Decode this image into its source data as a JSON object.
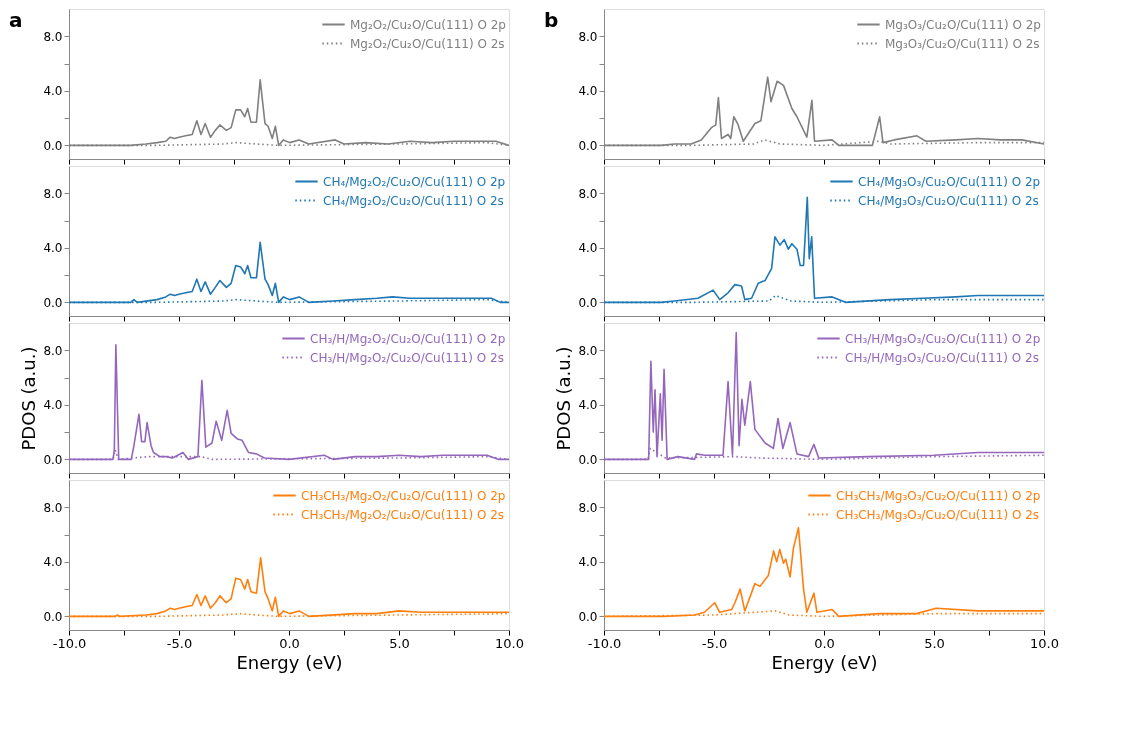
{
  "chart_data": [
    {
      "type": "line",
      "annotations": [
        "a"
      ],
      "legend": "top right",
      "tick_labels": "y",
      "xlim": [
        -10,
        10
      ],
      "ylim": [
        -1,
        10
      ],
      "xticks": [
        {
          "value": -10,
          "label": null
        },
        {
          "value": -7.5,
          "label": null
        },
        {
          "value": -5,
          "label": null
        },
        {
          "value": -2.5,
          "label": null
        },
        {
          "value": 0,
          "label": null
        },
        {
          "value": 2.5,
          "label": null
        },
        {
          "value": 5,
          "label": null
        },
        {
          "value": 7.5,
          "label": null
        },
        {
          "value": 10,
          "label": null
        }
      ],
      "yticks": [
        {
          "value": 0,
          "label": "0.0"
        },
        {
          "value": 2,
          "label": null
        },
        {
          "value": 4,
          "label": "4.0"
        },
        {
          "value": 6,
          "label": null
        },
        {
          "value": 8,
          "label": "8.0"
        }
      ],
      "series": [
        {
          "name": "Mg₂O₂/Cu₂O/Cu(111) O 2p",
          "color": "#808080",
          "line_style": "solid",
          "x": [
            -10,
            -7.2,
            -6.5,
            -6,
            -5.6,
            -5.4,
            -5.2,
            -5,
            -4.7,
            -4.4,
            -4.19,
            -4.0,
            -3.81,
            -3.57,
            -3.35,
            -3.14,
            -2.85,
            -2.63,
            -2.42,
            -2.2,
            -2.01,
            -1.88,
            -1.73,
            -1.48,
            -1.31,
            -1.09,
            -0.95,
            -0.76,
            -0.62,
            -0.47,
            -0.26,
            0.03,
            0.46,
            0.9,
            2.1,
            2.5,
            3.5,
            4.5,
            5.5,
            6.5,
            7.5,
            8.5,
            9.4,
            10
          ],
          "values": [
            0,
            0,
            0.1,
            0.2,
            0.3,
            0.6,
            0.5,
            0.6,
            0.7,
            0.8,
            1.8,
            0.8,
            1.6,
            0.6,
            1.1,
            1.5,
            1.1,
            1.3,
            2.6,
            2.6,
            2.1,
            2.7,
            1.7,
            1.7,
            4.8,
            1.6,
            1.4,
            0.5,
            1.4,
            0,
            0.4,
            0.2,
            0.4,
            0.1,
            0.4,
            0.1,
            0.2,
            0.1,
            0.3,
            0.2,
            0.3,
            0.3,
            0.3,
            0
          ]
        },
        {
          "name": "Mg₂O₂/Cu₂O/Cu(111) O 2s",
          "color": "#808080",
          "line_style": "dotted",
          "x": [
            -10,
            -6,
            -3,
            -2.4,
            -1.5,
            -0.5,
            5,
            9,
            10
          ],
          "values": [
            0,
            0,
            0.1,
            0.2,
            0.1,
            0,
            0.1,
            0.2,
            0
          ]
        }
      ]
    },
    {
      "type": "line",
      "annotations": [
        "b"
      ],
      "legend": "top right",
      "tick_labels": "y",
      "xlim": [
        -10,
        10
      ],
      "ylim": [
        -1,
        10
      ],
      "xticks": [
        {
          "value": -10,
          "label": null
        },
        {
          "value": -7.5,
          "label": null
        },
        {
          "value": -5,
          "label": null
        },
        {
          "value": -2.5,
          "label": null
        },
        {
          "value": 0,
          "label": null
        },
        {
          "value": 2.5,
          "label": null
        },
        {
          "value": 5,
          "label": null
        },
        {
          "value": 7.5,
          "label": null
        },
        {
          "value": 10,
          "label": null
        }
      ],
      "yticks": [
        {
          "value": 0,
          "label": "0.0"
        },
        {
          "value": 2,
          "label": null
        },
        {
          "value": 4,
          "label": "4.0"
        },
        {
          "value": 6,
          "label": null
        },
        {
          "value": 8,
          "label": "8.0"
        }
      ],
      "series": [
        {
          "name": "Mg₃O₃/Cu₂O/Cu(111) O 2p",
          "color": "#808080",
          "line_style": "solid",
          "x": [
            -10,
            -7.41,
            -6.8,
            -6.04,
            -5.58,
            -5.12,
            -4.92,
            -4.8,
            -4.66,
            -4.36,
            -4.24,
            -4.1,
            -3.9,
            -3.67,
            -3.14,
            -2.87,
            -2.56,
            -2.41,
            -2.13,
            -1.84,
            -1.46,
            -1.23,
            -0.78,
            -0.55,
            -0.43,
            0.37,
            0.67,
            2.2,
            2.53,
            2.68,
            3.19,
            4.22,
            4.63,
            6,
            7,
            8,
            9,
            10
          ],
          "values": [
            0,
            0,
            0.1,
            0.1,
            0.4,
            1.3,
            1.5,
            3.5,
            0.5,
            0.8,
            0.5,
            2.1,
            1.5,
            0.3,
            1.6,
            1.8,
            5.0,
            3.2,
            4.7,
            4.4,
            2.7,
            2.1,
            0.6,
            3.3,
            0.3,
            0.4,
            0,
            0,
            2.1,
            0.2,
            0.4,
            0.7,
            0.3,
            0.4,
            0.5,
            0.4,
            0.4,
            0.1
          ]
        },
        {
          "name": "Mg₃O₃/Cu₂O/Cu(111) O 2s",
          "color": "#808080",
          "line_style": "dotted",
          "x": [
            -10,
            -6,
            -3.2,
            -2.7,
            -2,
            0,
            2.5,
            3,
            7,
            10
          ],
          "values": [
            0,
            0,
            0.1,
            0.4,
            0.1,
            0,
            0.3,
            0.1,
            0.2,
            0.2
          ]
        }
      ]
    },
    {
      "type": "line",
      "legend": "top right",
      "tick_labels": "y",
      "xlim": [
        -10,
        10
      ],
      "ylim": [
        -1,
        10
      ],
      "xticks": [
        {
          "value": -10,
          "label": null
        },
        {
          "value": -7.5,
          "label": null
        },
        {
          "value": -5,
          "label": null
        },
        {
          "value": -2.5,
          "label": null
        },
        {
          "value": 0,
          "label": null
        },
        {
          "value": 2.5,
          "label": null
        },
        {
          "value": 5,
          "label": null
        },
        {
          "value": 7.5,
          "label": null
        },
        {
          "value": 10,
          "label": null
        }
      ],
      "yticks": [
        {
          "value": 0,
          "label": "0.0"
        },
        {
          "value": 2,
          "label": null
        },
        {
          "value": 4,
          "label": "4.0"
        },
        {
          "value": 6,
          "label": null
        },
        {
          "value": 8,
          "label": "8.0"
        }
      ],
      "series": [
        {
          "name": "CH₄/Mg₂O₂/Cu₂O/Cu(111) O 2p",
          "color": "#1f77b4",
          "line_style": "solid",
          "x": [
            -10,
            -7.2,
            -7.05,
            -6.9,
            -6,
            -5.6,
            -5.4,
            -5.2,
            -5,
            -4.7,
            -4.4,
            -4.19,
            -4.0,
            -3.81,
            -3.57,
            -3.35,
            -3.14,
            -2.85,
            -2.63,
            -2.42,
            -2.2,
            -2.01,
            -1.88,
            -1.73,
            -1.48,
            -1.31,
            -1.09,
            -0.95,
            -0.76,
            -0.62,
            -0.47,
            -0.26,
            0.03,
            0.46,
            0.9,
            2,
            3,
            4,
            4.7,
            5.5,
            6.5,
            7.5,
            8.5,
            9.2,
            9.6,
            10
          ],
          "values": [
            0,
            0,
            0.2,
            0,
            0.2,
            0.4,
            0.6,
            0.5,
            0.6,
            0.7,
            0.8,
            1.7,
            0.8,
            1.5,
            0.6,
            1.1,
            1.6,
            1.1,
            1.4,
            2.7,
            2.6,
            2.1,
            2.7,
            1.8,
            1.8,
            4.4,
            1.7,
            1.3,
            0.5,
            1.4,
            0,
            0.4,
            0.2,
            0.4,
            0,
            0.1,
            0.2,
            0.3,
            0.4,
            0.3,
            0.3,
            0.3,
            0.3,
            0.3,
            0,
            0
          ]
        },
        {
          "name": "CH₄/Mg₂O₂/Cu₂O/Cu(111) O 2s",
          "color": "#1f77b4",
          "line_style": "dotted",
          "x": [
            -10,
            -6,
            -3,
            -2.4,
            -1.5,
            -0.5,
            5,
            9,
            10
          ],
          "values": [
            0,
            0,
            0.1,
            0.2,
            0.1,
            0,
            0.1,
            0.2,
            0
          ]
        }
      ]
    },
    {
      "type": "line",
      "legend": "top right",
      "tick_labels": "y",
      "xlim": [
        -10,
        10
      ],
      "ylim": [
        -1,
        10
      ],
      "xticks": [
        {
          "value": -10,
          "label": null
        },
        {
          "value": -7.5,
          "label": null
        },
        {
          "value": -5,
          "label": null
        },
        {
          "value": -2.5,
          "label": null
        },
        {
          "value": 0,
          "label": null
        },
        {
          "value": 2.5,
          "label": null
        },
        {
          "value": 5,
          "label": null
        },
        {
          "value": 7.5,
          "label": null
        },
        {
          "value": 10,
          "label": null
        }
      ],
      "yticks": [
        {
          "value": 0,
          "label": "0.0"
        },
        {
          "value": 2,
          "label": null
        },
        {
          "value": 4,
          "label": "4.0"
        },
        {
          "value": 6,
          "label": null
        },
        {
          "value": 8,
          "label": "8.0"
        }
      ],
      "series": [
        {
          "name": "CH₄/Mg₃O₃/Cu₂O/Cu(111) O 2p",
          "color": "#1f77b4",
          "line_style": "solid",
          "x": [
            -10,
            -7.41,
            -6.8,
            -5.73,
            -5.04,
            -4.74,
            -4.36,
            -4.05,
            -3.75,
            -3.6,
            -3.29,
            -2.99,
            -2.68,
            -2.38,
            -2.23,
            -2.0,
            -1.81,
            -1.62,
            -1.46,
            -1.23,
            -1.08,
            -0.93,
            -0.76,
            -0.67,
            -0.56,
            -0.43,
            0.37,
            0.98,
            3,
            4.5,
            6,
            7,
            8.5,
            10
          ],
          "values": [
            0,
            0,
            0.1,
            0.3,
            0.9,
            0.2,
            0.7,
            1.3,
            1.2,
            0.2,
            0.3,
            1.4,
            1.6,
            2.5,
            4.8,
            4.2,
            4.6,
            3.9,
            4.3,
            3.9,
            2.7,
            2.7,
            7.7,
            3.2,
            4.8,
            0.3,
            0.4,
            0,
            0.2,
            0.3,
            0.4,
            0.5,
            0.5,
            0.5
          ]
        },
        {
          "name": "CH₄/Mg₃O₃/Cu₂O/Cu(111) O 2s",
          "color": "#1f77b4",
          "line_style": "dotted",
          "x": [
            -10,
            -6,
            -2.5,
            -2.2,
            -1.5,
            0,
            5,
            10
          ],
          "values": [
            0,
            0,
            0.1,
            0.5,
            0.1,
            0,
            0.2,
            0.2
          ]
        }
      ]
    },
    {
      "type": "line",
      "legend": "top right",
      "tick_labels": "y",
      "ylabel": "PDOS (a.u.)",
      "xlim": [
        -10,
        10
      ],
      "ylim": [
        -1,
        10
      ],
      "xticks": [
        {
          "value": -10,
          "label": null
        },
        {
          "value": -7.5,
          "label": null
        },
        {
          "value": -5,
          "label": null
        },
        {
          "value": -2.5,
          "label": null
        },
        {
          "value": 0,
          "label": null
        },
        {
          "value": 2.5,
          "label": null
        },
        {
          "value": 5,
          "label": null
        },
        {
          "value": 7.5,
          "label": null
        },
        {
          "value": 10,
          "label": null
        }
      ],
      "yticks": [
        {
          "value": 0,
          "label": "0.0"
        },
        {
          "value": 2,
          "label": null
        },
        {
          "value": 4,
          "label": "4.0"
        },
        {
          "value": 6,
          "label": null
        },
        {
          "value": 8,
          "label": "8.0"
        }
      ],
      "series": [
        {
          "name": "CH₃/H/Mg₂O₂/Cu₂O/Cu(111) O 2p",
          "color": "#9467bd",
          "line_style": "solid",
          "x": [
            -10,
            -8.0,
            -7.94,
            -7.87,
            -7.74,
            -7.17,
            -7.05,
            -6.82,
            -6.7,
            -6.55,
            -6.45,
            -6.27,
            -6.16,
            -5.87,
            -5.58,
            -5.3,
            -4.82,
            -4.58,
            -4.14,
            -3.96,
            -3.78,
            -3.5,
            -3.31,
            -3.06,
            -2.81,
            -2.63,
            -2.35,
            -2.13,
            -1.84,
            -1.48,
            -1.12,
            0,
            1.6,
            2,
            3,
            4,
            5,
            6,
            7,
            8,
            9,
            9.5,
            10
          ],
          "values": [
            0,
            0,
            0.7,
            8.4,
            0,
            0,
            1.0,
            3.3,
            1.3,
            1.3,
            2.7,
            1.0,
            0.5,
            0.2,
            0.2,
            0.1,
            0.5,
            0,
            0.2,
            5.8,
            0.9,
            1.2,
            2.8,
            1.4,
            3.6,
            1.9,
            1.5,
            1.4,
            0.5,
            0.4,
            0.1,
            0,
            0.3,
            0,
            0.2,
            0.2,
            0.3,
            0.2,
            0.3,
            0.3,
            0.3,
            0,
            0
          ]
        },
        {
          "name": "CH₃/H/Mg₂O₂/Cu₂O/Cu(111) O 2s",
          "color": "#9467bd",
          "line_style": "dotted",
          "x": [
            -10,
            -8.0,
            -7.9,
            -7.75,
            -6.4,
            -4.0,
            -3.5,
            5,
            9,
            10
          ],
          "values": [
            0,
            0,
            0.7,
            0,
            0.2,
            0.2,
            0,
            0.1,
            0.2,
            0
          ]
        }
      ]
    },
    {
      "type": "line",
      "legend": "top right",
      "tick_labels": "y",
      "ylabel": "PDOS (a.u.)",
      "xlim": [
        -10,
        10
      ],
      "ylim": [
        -1,
        10
      ],
      "xticks": [
        {
          "value": -10,
          "label": null
        },
        {
          "value": -7.5,
          "label": null
        },
        {
          "value": -5,
          "label": null
        },
        {
          "value": -2.5,
          "label": null
        },
        {
          "value": 0,
          "label": null
        },
        {
          "value": 2.5,
          "label": null
        },
        {
          "value": 5,
          "label": null
        },
        {
          "value": 7.5,
          "label": null
        },
        {
          "value": 10,
          "label": null
        }
      ],
      "yticks": [
        {
          "value": 0,
          "label": "0.0"
        },
        {
          "value": 2,
          "label": null
        },
        {
          "value": 4,
          "label": "4.0"
        },
        {
          "value": 6,
          "label": null
        },
        {
          "value": 8,
          "label": "8.0"
        }
      ],
      "series": [
        {
          "name": "CH₃/H/Mg₃O₃/Cu₂O/Cu(111) O 2p",
          "color": "#9467bd",
          "line_style": "solid",
          "x": [
            -10,
            -7.97,
            -7.87,
            -7.76,
            -7.68,
            -7.59,
            -7.44,
            -7.36,
            -7.27,
            -7.13,
            -6.65,
            -5.88,
            -5.8,
            -5.43,
            -4.59,
            -4.36,
            -4.16,
            -3.99,
            -3.86,
            -3.73,
            -3.6,
            -3.35,
            -3.14,
            -2.68,
            -2.3,
            -2.09,
            -1.87,
            -1.54,
            -1.23,
            -0.7,
            -0.46,
            -0.24,
            2,
            5,
            7,
            10
          ],
          "values": [
            0,
            0,
            7.2,
            2.0,
            5.1,
            0.2,
            4.8,
            1.4,
            6.6,
            0,
            0.2,
            0,
            0.4,
            0.3,
            0.3,
            5.7,
            0.3,
            9.3,
            1.0,
            4.4,
            2.5,
            5.7,
            2.2,
            1.2,
            0.8,
            3.0,
            0.8,
            2.7,
            0.4,
            0.2,
            1.1,
            0.1,
            0.2,
            0.3,
            0.5,
            0.5
          ]
        },
        {
          "name": "CH₃/H/Mg₃O₃/Cu₂O/Cu(111) O 2s",
          "color": "#9467bd",
          "line_style": "dotted",
          "x": [
            -10,
            -8,
            -7.9,
            -7.6,
            -7.2,
            -4,
            -3,
            0,
            5,
            10
          ],
          "values": [
            0,
            0,
            0.8,
            0.5,
            0.1,
            0.2,
            0.1,
            0,
            0.2,
            0.3
          ]
        }
      ]
    },
    {
      "type": "line",
      "legend": "top right",
      "xlabel": "Energy (eV)",
      "xlim": [
        -10,
        10
      ],
      "ylim": [
        -1,
        10
      ],
      "xticks": [
        {
          "value": -10,
          "label": "-10.0"
        },
        {
          "value": -7.5,
          "label": null
        },
        {
          "value": -5,
          "label": "-5.0"
        },
        {
          "value": -2.5,
          "label": null
        },
        {
          "value": 0,
          "label": "0.0"
        },
        {
          "value": 2.5,
          "label": null
        },
        {
          "value": 5,
          "label": "5.0"
        },
        {
          "value": 7.5,
          "label": null
        },
        {
          "value": 10,
          "label": "10.0"
        }
      ],
      "yticks": [
        {
          "value": 0,
          "label": "0.0"
        },
        {
          "value": 2,
          "label": null
        },
        {
          "value": 4,
          "label": "4.0"
        },
        {
          "value": 6,
          "label": null
        },
        {
          "value": 8,
          "label": "8.0"
        }
      ],
      "series": [
        {
          "name": "CH₃CH₃/Mg₂O₂/Cu₂O/Cu(111) O 2p",
          "color": "#ff7f0e",
          "line_style": "solid",
          "x": [
            -10,
            -7.9,
            -7.8,
            -7.7,
            -6.5,
            -6,
            -5.6,
            -5.4,
            -5.2,
            -5,
            -4.7,
            -4.4,
            -4.19,
            -4.0,
            -3.81,
            -3.57,
            -3.35,
            -3.14,
            -2.85,
            -2.63,
            -2.42,
            -2.2,
            -2.01,
            -1.88,
            -1.73,
            -1.48,
            -1.29,
            -1.09,
            -0.95,
            -0.76,
            -0.62,
            -0.47,
            -0.26,
            0.03,
            0.46,
            0.9,
            3,
            4,
            5,
            6,
            7,
            8,
            9,
            10
          ],
          "values": [
            0,
            0,
            0.1,
            0,
            0.1,
            0.2,
            0.4,
            0.6,
            0.5,
            0.6,
            0.7,
            0.8,
            1.6,
            0.8,
            1.5,
            0.6,
            1.0,
            1.5,
            1.0,
            1.3,
            2.8,
            2.7,
            2.0,
            2.7,
            1.8,
            1.7,
            4.3,
            1.8,
            1.3,
            0.4,
            1.4,
            0,
            0.4,
            0.2,
            0.4,
            0,
            0.2,
            0.2,
            0.4,
            0.3,
            0.3,
            0.3,
            0.3,
            0.3
          ]
        },
        {
          "name": "CH₃CH₃/Mg₂O₂/Cu₂O/Cu(111) O 2s",
          "color": "#ff7f0e",
          "line_style": "dotted",
          "x": [
            -10,
            -6,
            -3,
            -2.2,
            -1.5,
            -0.5,
            5,
            10
          ],
          "values": [
            0,
            0,
            0.1,
            0.2,
            0.1,
            0,
            0.1,
            0.2
          ]
        }
      ]
    },
    {
      "type": "line",
      "legend": "top right",
      "xlabel": "Energy (eV)",
      "xlim": [
        -10,
        10
      ],
      "ylim": [
        -1,
        10
      ],
      "xticks": [
        {
          "value": -10,
          "label": "-10.0"
        },
        {
          "value": -7.5,
          "label": null
        },
        {
          "value": -5,
          "label": "-5.0"
        },
        {
          "value": -2.5,
          "label": null
        },
        {
          "value": 0,
          "label": "0.0"
        },
        {
          "value": 2.5,
          "label": null
        },
        {
          "value": 5,
          "label": "5.0"
        },
        {
          "value": 7.5,
          "label": null
        },
        {
          "value": 10,
          "label": "10.0"
        }
      ],
      "yticks": [
        {
          "value": 0,
          "label": "0.0"
        },
        {
          "value": 2,
          "label": null
        },
        {
          "value": 4,
          "label": "4.0"
        },
        {
          "value": 6,
          "label": null
        },
        {
          "value": 8,
          "label": "8.0"
        }
      ],
      "series": [
        {
          "name": "CH₃CH₃/Mg₃O₃/Cu₂O/Cu(111) O 2p",
          "color": "#ff7f0e",
          "line_style": "solid",
          "x": [
            -10,
            -7.26,
            -5.88,
            -5.43,
            -4.97,
            -4.74,
            -4.2,
            -4.05,
            -3.81,
            -3.6,
            -3.14,
            -2.91,
            -2.53,
            -2.29,
            -2.15,
            -2.01,
            -1.84,
            -1.74,
            -1.54,
            -1.39,
            -1.16,
            -0.93,
            -0.78,
            -0.46,
            -0.32,
            0.37,
            0.67,
            2.5,
            4.2,
            5.1,
            7,
            10
          ],
          "values": [
            0,
            0,
            0.1,
            0.3,
            1.0,
            0.3,
            0.5,
            1.0,
            2.0,
            0.4,
            2.4,
            2.2,
            3.0,
            4.8,
            4.0,
            4.9,
            3.9,
            4.2,
            2.9,
            5.0,
            6.5,
            2.0,
            0.3,
            1.7,
            0.3,
            0.5,
            0,
            0.2,
            0.2,
            0.6,
            0.4,
            0.4
          ]
        },
        {
          "name": "CH₃CH₃/Mg₃O₃/Cu₂O/Cu(111) O 2s",
          "color": "#ff7f0e",
          "line_style": "dotted",
          "x": [
            -10,
            -5,
            -2.2,
            -1.6,
            0,
            5,
            10
          ],
          "values": [
            0,
            0.1,
            0.4,
            0.1,
            0,
            0.2,
            0.2
          ]
        }
      ]
    }
  ]
}
